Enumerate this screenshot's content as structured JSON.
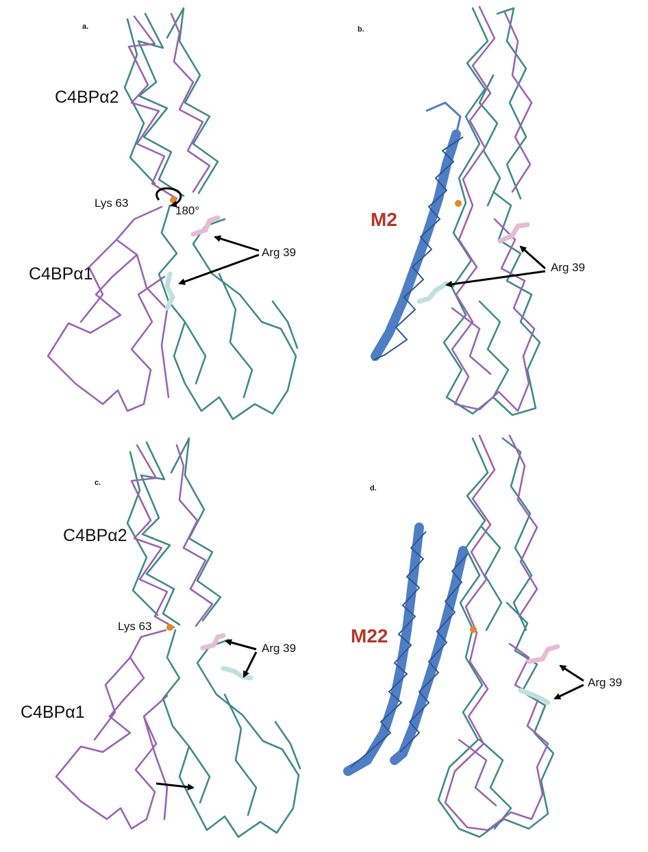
{
  "panels": {
    "a": {
      "letter": "a.",
      "domain_top": "C4BPα2",
      "domain_bottom": "C4BPα1",
      "hinge_residue": "Lys 63",
      "rotation": "180°",
      "residue": "Arg 39"
    },
    "b": {
      "letter": "b.",
      "peptide": "M2",
      "residue": "Arg 39"
    },
    "c": {
      "letter": "c.",
      "domain_top": "C4BPα2",
      "domain_bottom": "C4BPα1",
      "hinge_residue": "Lys 63",
      "residue": "Arg 39"
    },
    "d": {
      "letter": "d.",
      "peptide": "M22",
      "residue": "Arg 39"
    }
  },
  "colors": {
    "structure_1": "#3f8a87",
    "structure_2": "#9a63b2",
    "helix": "#4f7ec4",
    "hinge_atom": "#e08a2a",
    "arg_pink": "#e6bcd4",
    "arg_pale": "#bfe0dc",
    "peptide_label": "#b5362b"
  }
}
